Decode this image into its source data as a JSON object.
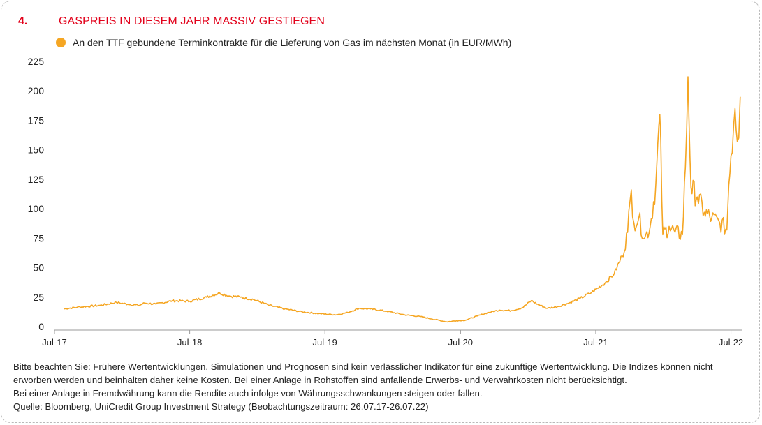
{
  "header": {
    "number": "4.",
    "title": "GASPREIS IN DIESEM JAHR MASSIV GESTIEGEN"
  },
  "colors": {
    "accent": "#e2001a",
    "series": "#f5a623",
    "axis": "#999999"
  },
  "chart_data": {
    "type": "line",
    "series": [
      {
        "name": "An den TTF gebundene Terminkontrakte für die Lieferung von Gas im nächsten Monat (in EUR/MWh)",
        "points": [
          [
            "2017-07-26",
            15
          ],
          [
            "2017-09-01",
            16.5
          ],
          [
            "2017-11-01",
            18
          ],
          [
            "2017-12-15",
            20.5
          ],
          [
            "2018-01-15",
            19
          ],
          [
            "2018-02-15",
            18
          ],
          [
            "2018-03-01",
            20
          ],
          [
            "2018-04-01",
            19
          ],
          [
            "2018-05-15",
            22
          ],
          [
            "2018-07-01",
            21.5
          ],
          [
            "2018-08-15",
            25
          ],
          [
            "2018-09-20",
            28.5
          ],
          [
            "2018-10-15",
            26
          ],
          [
            "2018-11-15",
            25
          ],
          [
            "2018-12-20",
            23
          ],
          [
            "2019-02-01",
            18
          ],
          [
            "2019-03-15",
            15
          ],
          [
            "2019-05-01",
            12.5
          ],
          [
            "2019-06-15",
            11
          ],
          [
            "2019-08-01",
            10
          ],
          [
            "2019-09-01",
            12
          ],
          [
            "2019-10-01",
            15.5
          ],
          [
            "2019-11-01",
            15
          ],
          [
            "2019-12-15",
            13
          ],
          [
            "2020-02-01",
            10
          ],
          [
            "2020-03-15",
            8.5
          ],
          [
            "2020-04-15",
            6.5
          ],
          [
            "2020-05-25",
            4
          ],
          [
            "2020-06-20",
            5
          ],
          [
            "2020-07-15",
            5.5
          ],
          [
            "2020-08-15",
            9
          ],
          [
            "2020-09-15",
            12
          ],
          [
            "2020-10-15",
            14
          ],
          [
            "2020-11-15",
            13.5
          ],
          [
            "2020-12-15",
            16
          ],
          [
            "2021-01-08",
            22
          ],
          [
            "2021-01-25",
            19
          ],
          [
            "2021-02-20",
            15.5
          ],
          [
            "2021-03-20",
            17
          ],
          [
            "2021-04-20",
            20
          ],
          [
            "2021-05-20",
            24
          ],
          [
            "2021-06-20",
            29
          ],
          [
            "2021-07-26",
            37
          ],
          [
            "2021-08-20",
            45
          ],
          [
            "2021-09-10",
            60
          ],
          [
            "2021-09-25",
            80
          ],
          [
            "2021-10-05",
            116
          ],
          [
            "2021-10-12",
            88
          ],
          [
            "2021-10-25",
            92
          ],
          [
            "2021-11-10",
            75
          ],
          [
            "2021-11-25",
            85
          ],
          [
            "2021-12-10",
            120
          ],
          [
            "2021-12-21",
            180
          ],
          [
            "2021-12-29",
            78
          ],
          [
            "2022-01-15",
            85
          ],
          [
            "2022-01-31",
            80
          ],
          [
            "2022-02-20",
            78
          ],
          [
            "2022-02-28",
            135
          ],
          [
            "2022-03-07",
            212
          ],
          [
            "2022-03-15",
            118
          ],
          [
            "2022-04-01",
            110
          ],
          [
            "2022-04-20",
            97
          ],
          [
            "2022-05-10",
            92
          ],
          [
            "2022-06-01",
            88
          ],
          [
            "2022-06-20",
            82
          ],
          [
            "2022-06-25",
            120
          ],
          [
            "2022-07-01",
            145
          ],
          [
            "2022-07-08",
            170
          ],
          [
            "2022-07-12",
            185
          ],
          [
            "2022-07-18",
            157
          ],
          [
            "2022-07-22",
            160
          ],
          [
            "2022-07-26",
            195
          ]
        ]
      }
    ],
    "x_ticks": [
      "Jul-17",
      "Jul-18",
      "Jul-19",
      "Jul-20",
      "Jul-21",
      "Jul-22"
    ],
    "x_tick_dates": [
      "2017-07-01",
      "2018-07-01",
      "2019-07-01",
      "2020-07-01",
      "2021-07-01",
      "2022-07-01"
    ],
    "y_ticks": [
      0,
      25,
      50,
      75,
      100,
      125,
      150,
      175,
      200,
      225
    ],
    "ylim": [
      0,
      225
    ],
    "xlim": [
      "2017-07-01",
      "2022-08-01"
    ],
    "grid": false,
    "legend_position": "top-left"
  },
  "footer": {
    "disclaimer_1": "Bitte beachten Sie: Frühere Wertentwicklungen, Simulationen und Prognosen sind kein verlässlicher Indikator für eine zukünftige Wertentwicklung. Die Indizes können nicht erworben werden und beinhalten daher keine Kosten. Bei einer Anlage in Rohstoffen sind anfallende Erwerbs- und Verwahrkosten nicht berücksichtigt.",
    "disclaimer_2": "Bei einer Anlage in Fremdwährung kann die Rendite auch infolge von Währungsschwankungen steigen oder fallen.",
    "source": "Quelle: Bloomberg, UniCredit Group Investment Strategy (Beobachtungszeitraum: 26.07.17-26.07.22)"
  }
}
